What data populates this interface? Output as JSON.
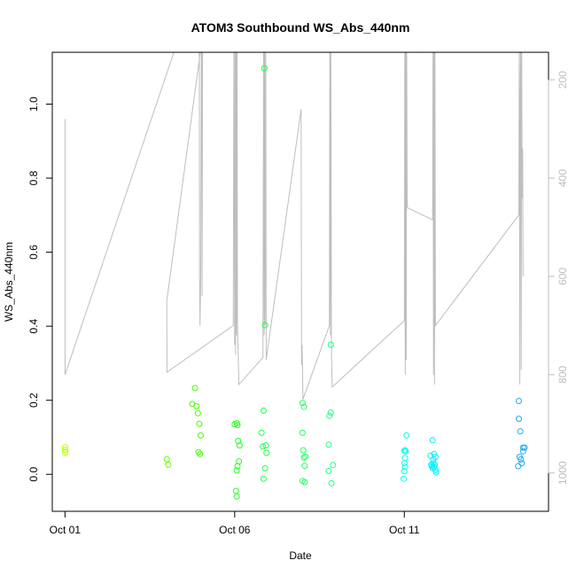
{
  "chart_data": {
    "type": "scatter",
    "title": "ATOM3 Southbound WS_Abs_440nm",
    "xlabel": "Date",
    "ylabel": "WS_Abs_440nm",
    "x_ticks": [
      {
        "date": "2016-10-01",
        "label": "Oct 01"
      },
      {
        "date": "2016-10-06",
        "label": "Oct 06"
      },
      {
        "date": "2016-10-11",
        "label": "Oct 11"
      }
    ],
    "xlim": [
      "2016-09-30T15:00",
      "2016-10-15T06:00"
    ],
    "ylim": [
      -0.1,
      1.14
    ],
    "y_ticks": [
      0.0,
      0.2,
      0.4,
      0.6,
      0.8,
      1.0
    ],
    "y2_ticks": [
      200,
      400,
      600,
      800,
      1000
    ],
    "y2lim": [
      1078,
      144
    ],
    "y2_inverted": true,
    "grid": false,
    "colors": {
      "profile_line": "#bebebe",
      "axis": "#000000",
      "right_axis": "#bdbdbd"
    },
    "points": [
      {
        "t": "2016-10-01T00:00",
        "v": 0.073,
        "color": "#b3ff00"
      },
      {
        "t": "2016-10-01T00:05",
        "v": 0.066,
        "color": "#b3ff00"
      },
      {
        "t": "2016-10-01T00:10",
        "v": 0.059,
        "color": "#b3ff00"
      },
      {
        "t": "2016-10-04T00:00",
        "v": 0.041,
        "color": "#66ff00"
      },
      {
        "t": "2016-10-04T01:00",
        "v": 0.026,
        "color": "#66ff00"
      },
      {
        "t": "2016-10-04T18:00",
        "v": 0.19,
        "color": "#44ff00"
      },
      {
        "t": "2016-10-04T20:00",
        "v": 0.233,
        "color": "#44ff00"
      },
      {
        "t": "2016-10-04T21:00",
        "v": 0.184,
        "color": "#44ff00"
      },
      {
        "t": "2016-10-04T22:00",
        "v": 0.165,
        "color": "#44ff00"
      },
      {
        "t": "2016-10-04T23:00",
        "v": 0.136,
        "color": "#44ff00"
      },
      {
        "t": "2016-10-05T00:00",
        "v": 0.105,
        "color": "#44ff00"
      },
      {
        "t": "2016-10-04T22:30",
        "v": 0.06,
        "color": "#44ff00"
      },
      {
        "t": "2016-10-04T23:30",
        "v": 0.055,
        "color": "#44ff00"
      },
      {
        "t": "2016-10-06T00:00",
        "v": 0.135,
        "color": "#22ff22"
      },
      {
        "t": "2016-10-06T01:30",
        "v": 0.138,
        "color": "#22ff22"
      },
      {
        "t": "2016-10-06T02:00",
        "v": 0.133,
        "color": "#22ff22"
      },
      {
        "t": "2016-10-06T02:30",
        "v": 0.09,
        "color": "#22ff22"
      },
      {
        "t": "2016-10-06T03:30",
        "v": 0.078,
        "color": "#22ff22"
      },
      {
        "t": "2016-10-06T03:00",
        "v": 0.035,
        "color": "#22ff22"
      },
      {
        "t": "2016-10-06T02:00",
        "v": 0.022,
        "color": "#22ff22"
      },
      {
        "t": "2016-10-06T01:30",
        "v": 0.01,
        "color": "#22ff22"
      },
      {
        "t": "2016-10-06T01:00",
        "v": -0.045,
        "color": "#22ff22"
      },
      {
        "t": "2016-10-06T01:30",
        "v": -0.06,
        "color": "#22ff22"
      },
      {
        "t": "2016-10-06T19:00",
        "v": 0.112,
        "color": "#22ff44"
      },
      {
        "t": "2016-10-06T20:30",
        "v": 0.172,
        "color": "#22ff44"
      },
      {
        "t": "2016-10-06T22:00",
        "v": 0.078,
        "color": "#22ff44"
      },
      {
        "t": "2016-10-06T20:00",
        "v": 0.075,
        "color": "#22ff44"
      },
      {
        "t": "2016-10-06T22:30",
        "v": 0.058,
        "color": "#22ff44"
      },
      {
        "t": "2016-10-06T21:30",
        "v": 0.016,
        "color": "#22ff44"
      },
      {
        "t": "2016-10-06T20:30",
        "v": -0.012,
        "color": "#22ff44"
      },
      {
        "t": "2016-10-06T21:00",
        "v": 1.097,
        "color": "#22ff44"
      },
      {
        "t": "2016-10-06T21:30",
        "v": 0.403,
        "color": "#22ff44"
      },
      {
        "t": "2016-10-08T00:00",
        "v": 0.193,
        "color": "#22ff66"
      },
      {
        "t": "2016-10-08T01:00",
        "v": 0.182,
        "color": "#22ff66"
      },
      {
        "t": "2016-10-08T00:00",
        "v": 0.112,
        "color": "#22ff66"
      },
      {
        "t": "2016-10-08T00:30",
        "v": 0.065,
        "color": "#22ff66"
      },
      {
        "t": "2016-10-08T02:00",
        "v": 0.048,
        "color": "#22ff66"
      },
      {
        "t": "2016-10-08T01:00",
        "v": 0.045,
        "color": "#22ff66"
      },
      {
        "t": "2016-10-08T01:30",
        "v": 0.023,
        "color": "#22ff66"
      },
      {
        "t": "2016-10-08T00:00",
        "v": -0.018,
        "color": "#22ff66"
      },
      {
        "t": "2016-10-08T01:30",
        "v": -0.021,
        "color": "#22ff66"
      },
      {
        "t": "2016-10-08T20:00",
        "v": 0.35,
        "color": "#22ff88"
      },
      {
        "t": "2016-10-08T19:00",
        "v": 0.158,
        "color": "#22ff88"
      },
      {
        "t": "2016-10-08T20:00",
        "v": 0.167,
        "color": "#22ff88"
      },
      {
        "t": "2016-10-08T18:30",
        "v": 0.08,
        "color": "#22ff88"
      },
      {
        "t": "2016-10-08T21:30",
        "v": 0.025,
        "color": "#22ff88"
      },
      {
        "t": "2016-10-08T18:30",
        "v": 0.009,
        "color": "#22ff88"
      },
      {
        "t": "2016-10-08T20:30",
        "v": -0.024,
        "color": "#22ff88"
      },
      {
        "t": "2016-10-11T00:00",
        "v": 0.064,
        "color": "#00ffee"
      },
      {
        "t": "2016-10-11T01:00",
        "v": 0.062,
        "color": "#00ffee"
      },
      {
        "t": "2016-10-11T00:30",
        "v": 0.044,
        "color": "#00ffee"
      },
      {
        "t": "2016-10-11T00:00",
        "v": 0.03,
        "color": "#00ffee"
      },
      {
        "t": "2016-10-11T00:30",
        "v": 0.02,
        "color": "#00ffee"
      },
      {
        "t": "2016-10-11T00:00",
        "v": 0.008,
        "color": "#00ffee"
      },
      {
        "t": "2016-10-10T23:30",
        "v": -0.012,
        "color": "#00ffee"
      },
      {
        "t": "2016-10-11T01:30",
        "v": 0.105,
        "color": "#00ffee"
      },
      {
        "t": "2016-10-11T00:30",
        "v": 0.065,
        "color": "#00ffee"
      },
      {
        "t": "2016-10-11T18:30",
        "v": 0.05,
        "color": "#00eeff"
      },
      {
        "t": "2016-10-11T20:00",
        "v": 0.092,
        "color": "#00eeff"
      },
      {
        "t": "2016-10-11T21:00",
        "v": 0.055,
        "color": "#00eeff"
      },
      {
        "t": "2016-10-11T22:00",
        "v": 0.047,
        "color": "#00eeff"
      },
      {
        "t": "2016-10-11T20:30",
        "v": 0.04,
        "color": "#00eeff"
      },
      {
        "t": "2016-10-11T19:00",
        "v": 0.026,
        "color": "#00eeff"
      },
      {
        "t": "2016-10-11T19:30",
        "v": 0.022,
        "color": "#00eeff"
      },
      {
        "t": "2016-10-11T20:00",
        "v": 0.017,
        "color": "#00eeff"
      },
      {
        "t": "2016-10-11T21:00",
        "v": 0.02,
        "color": "#00eeff"
      },
      {
        "t": "2016-10-11T21:30",
        "v": 0.025,
        "color": "#00eeff"
      },
      {
        "t": "2016-10-11T22:00",
        "v": 0.012,
        "color": "#00eeff"
      },
      {
        "t": "2016-10-11T22:30",
        "v": 0.005,
        "color": "#00eeff"
      },
      {
        "t": "2016-10-11T20:30",
        "v": 0.03,
        "color": "#00eeff"
      },
      {
        "t": "2016-10-14T09:00",
        "v": 0.198,
        "color": "#22aaee"
      },
      {
        "t": "2016-10-14T09:00",
        "v": 0.15,
        "color": "#22aaee"
      },
      {
        "t": "2016-10-14T10:00",
        "v": 0.116,
        "color": "#22aaee"
      },
      {
        "t": "2016-10-14T12:00",
        "v": 0.072,
        "color": "#22aaee"
      },
      {
        "t": "2016-10-14T13:00",
        "v": 0.072,
        "color": "#22aaee"
      },
      {
        "t": "2016-10-14T12:00",
        "v": 0.062,
        "color": "#22aaee"
      },
      {
        "t": "2016-10-14T09:30",
        "v": 0.047,
        "color": "#22aaee"
      },
      {
        "t": "2016-10-14T10:30",
        "v": 0.04,
        "color": "#22aaee"
      },
      {
        "t": "2016-10-14T11:00",
        "v": 0.03,
        "color": "#22aaee"
      },
      {
        "t": "2016-10-14T08:30",
        "v": 0.022,
        "color": "#22aaee"
      }
    ],
    "profile": [
      [
        "2016-10-01T00:00",
        280
      ],
      [
        "2016-10-01T00:01",
        345
      ],
      [
        "2016-10-01T00:03",
        800
      ],
      [
        "2016-10-04T09:00",
        110
      ],
      [
        "2016-10-04T09:10",
        110
      ],
      [
        "2016-10-04T09:30",
        110
      ],
      [
        "2016-10-04T10:00",
        110
      ],
      [
        "2016-10-04T23:00",
        110
      ],
      [
        "2016-10-04T23:10",
        600
      ],
      [
        "2016-10-04T23:30",
        700
      ],
      [
        "2016-10-05T00:00",
        600
      ],
      [
        "2016-10-05T00:30",
        110
      ],
      [
        "2016-10-05T00:40",
        110
      ],
      [
        "2016-10-05T01:00",
        640
      ],
      [
        "2016-10-05T01:20",
        110
      ],
      [
        "2016-10-04T00:00",
        650
      ],
      [
        "2016-10-04T00:05",
        795
      ],
      [
        "2016-10-05T23:00",
        700
      ],
      [
        "2016-10-05T23:30",
        110
      ],
      [
        "2016-10-06T00:00",
        740
      ],
      [
        "2016-10-06T00:20",
        110
      ],
      [
        "2016-10-06T00:40",
        760
      ],
      [
        "2016-10-06T01:00",
        110
      ],
      [
        "2016-10-06T01:20",
        720
      ],
      [
        "2016-10-06T01:40",
        110
      ],
      [
        "2016-10-06T02:00",
        700
      ],
      [
        "2016-10-06T02:30",
        760
      ],
      [
        "2016-10-06T03:00",
        820
      ],
      [
        "2016-10-06T20:00",
        765
      ],
      [
        "2016-10-06T20:30",
        110
      ],
      [
        "2016-10-06T20:50",
        720
      ],
      [
        "2016-10-06T21:10",
        110
      ],
      [
        "2016-10-06T21:30",
        700
      ],
      [
        "2016-10-06T22:00",
        110
      ],
      [
        "2016-10-06T22:20",
        770
      ],
      [
        "2016-10-07T23:00",
        260
      ],
      [
        "2016-10-07T23:20",
        780
      ],
      [
        "2016-10-07T23:40",
        740
      ],
      [
        "2016-10-08T00:00",
        790
      ],
      [
        "2016-10-08T00:20",
        850
      ],
      [
        "2016-10-08T19:00",
        700
      ],
      [
        "2016-10-08T19:20",
        110
      ],
      [
        "2016-10-08T19:40",
        720
      ],
      [
        "2016-10-08T20:00",
        110
      ],
      [
        "2016-10-08T20:30",
        760
      ],
      [
        "2016-10-08T21:00",
        825
      ],
      [
        "2016-10-11T00:00",
        690
      ],
      [
        "2016-10-11T00:20",
        110
      ],
      [
        "2016-10-11T00:40",
        800
      ],
      [
        "2016-10-11T01:00",
        110
      ],
      [
        "2016-10-11T01:20",
        770
      ],
      [
        "2016-10-11T01:40",
        110
      ],
      [
        "2016-10-11T02:00",
        460
      ],
      [
        "2016-10-11T20:00",
        485
      ],
      [
        "2016-10-11T20:20",
        110
      ],
      [
        "2016-10-11T20:40",
        800
      ],
      [
        "2016-10-11T21:00",
        110
      ],
      [
        "2016-10-11T21:20",
        820
      ],
      [
        "2016-10-11T21:40",
        110
      ],
      [
        "2016-10-11T22:00",
        700
      ],
      [
        "2016-10-14T09:00",
        475
      ],
      [
        "2016-10-14T09:20",
        110
      ],
      [
        "2016-10-14T09:40",
        820
      ],
      [
        "2016-10-14T10:00",
        240
      ],
      [
        "2016-10-14T10:20",
        110
      ],
      [
        "2016-10-14T10:40",
        790
      ],
      [
        "2016-10-14T11:00",
        110
      ],
      [
        "2016-10-14T11:20",
        440
      ],
      [
        "2016-10-14T11:40",
        340
      ],
      [
        "2016-10-14T12:00",
        600
      ]
    ]
  }
}
